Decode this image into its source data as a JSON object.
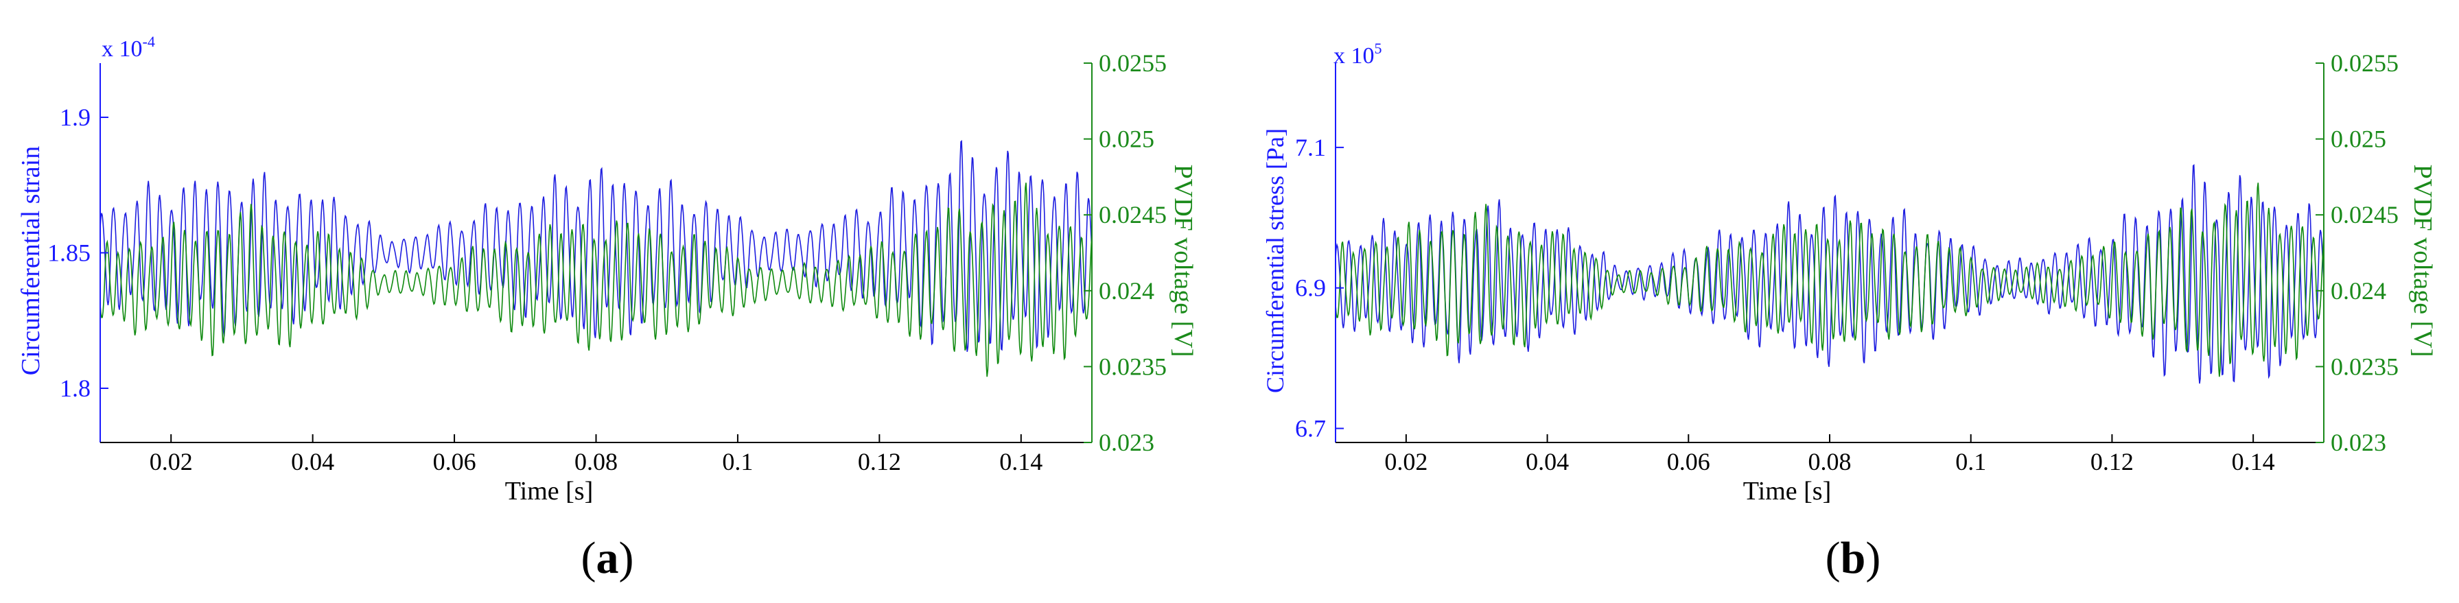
{
  "figure": {
    "panels": [
      {
        "panel_label": "a",
        "panel_label_text": "(a)"
      },
      {
        "panel_label": "b",
        "panel_label_text": "(b)"
      }
    ]
  },
  "colors": {
    "left_axis": "#1a1aff",
    "right_axis": "#1a8a1a",
    "axes": "#000000",
    "strain_line": "#1e1ee0",
    "voltage_line": "#0f8a0f"
  },
  "chart_data": [
    {
      "type": "line",
      "title": "",
      "panel": "(a)",
      "xlabel": "Time [s]",
      "xlim": [
        0.01,
        0.15
      ],
      "xticks": [
        0.02,
        0.04,
        0.06,
        0.08,
        0.1,
        0.12,
        0.14
      ],
      "xtick_labels": [
        "0.02",
        "0.04",
        "0.06",
        "0.08",
        "0.1",
        "0.12",
        "0.14"
      ],
      "y_left": {
        "label": "Circumferential strain",
        "exponent_label": "x 10",
        "exponent": "-4",
        "lim": [
          1.78,
          1.92
        ],
        "ticks": [
          1.8,
          1.85,
          1.9
        ],
        "tick_labels": [
          "1.8",
          "1.85",
          "1.9"
        ],
        "color": "#1a1aff"
      },
      "y_right": {
        "label": "PVDF voltage [V]",
        "lim": [
          0.023,
          0.0255
        ],
        "ticks": [
          0.023,
          0.0235,
          0.024,
          0.0245,
          0.025,
          0.0255
        ],
        "tick_labels": [
          "0.023",
          "0.0235",
          "0.024",
          "0.0245",
          "0.025",
          "0.0255"
        ],
        "color": "#1a8a1a"
      },
      "series": [
        {
          "axis": "left",
          "color": "#1e1ee0",
          "signal": {
            "mean": 1.85,
            "freq_hz": 610,
            "amplitude_envelope": {
              "t": [
                0.01,
                0.02,
                0.03,
                0.045,
                0.05,
                0.055,
                0.065,
                0.08,
                0.095,
                0.105,
                0.115,
                0.125,
                0.132,
                0.14,
                0.15
              ],
              "v": [
                0.02,
                0.03,
                0.033,
                0.022,
                0.006,
                0.008,
                0.02,
                0.036,
                0.024,
                0.008,
                0.016,
                0.03,
                0.045,
                0.04,
                0.028
              ]
            }
          }
        },
        {
          "axis": "right",
          "color": "#0f8a0f",
          "signal": {
            "mean": 0.02405,
            "freq_hz": 640,
            "amplitude_envelope": {
              "t": [
                0.01,
                0.02,
                0.03,
                0.045,
                0.05,
                0.055,
                0.065,
                0.08,
                0.095,
                0.105,
                0.115,
                0.125,
                0.132,
                0.14,
                0.15
              ],
              "v": [
                0.0003,
                0.0004,
                0.00055,
                0.0003,
                8e-05,
                0.0001,
                0.0003,
                0.0005,
                0.00035,
                0.0001,
                0.0002,
                0.0004,
                0.0006,
                0.0007,
                0.0004
              ]
            }
          }
        }
      ]
    },
    {
      "type": "line",
      "title": "",
      "panel": "(b)",
      "xlabel": "Time [s]",
      "xlim": [
        0.01,
        0.15
      ],
      "xticks": [
        0.02,
        0.04,
        0.06,
        0.08,
        0.1,
        0.12,
        0.14
      ],
      "xtick_labels": [
        "0.02",
        "0.04",
        "0.06",
        "0.08",
        "0.1",
        "0.12",
        "0.14"
      ],
      "y_left": {
        "label": "Circumferential stress [Pa]",
        "exponent_label": "x 10",
        "exponent": "5",
        "lim": [
          6.68,
          7.22
        ],
        "ticks": [
          6.7,
          6.9,
          7.1
        ],
        "tick_labels": [
          "6.7",
          "6.9",
          "7.1"
        ],
        "color": "#1a1aff"
      },
      "y_right": {
        "label": "PVDF voltage [V]",
        "lim": [
          0.023,
          0.0255
        ],
        "ticks": [
          0.023,
          0.0235,
          0.024,
          0.0245,
          0.025,
          0.0255
        ],
        "tick_labels": [
          "0.023",
          "0.0235",
          "0.024",
          "0.0245",
          "0.025",
          "0.0255"
        ],
        "color": "#1a8a1a"
      },
      "series": [
        {
          "axis": "left",
          "color": "#1e1ee0",
          "signal": {
            "mean": 6.91,
            "freq_hz": 610,
            "amplitude_envelope": {
              "t": [
                0.01,
                0.02,
                0.03,
                0.045,
                0.05,
                0.055,
                0.065,
                0.08,
                0.095,
                0.105,
                0.115,
                0.125,
                0.132,
                0.14,
                0.15
              ],
              "v": [
                0.07,
                0.1,
                0.13,
                0.08,
                0.02,
                0.03,
                0.08,
                0.14,
                0.09,
                0.03,
                0.06,
                0.12,
                0.18,
                0.16,
                0.1
              ]
            }
          }
        },
        {
          "axis": "right",
          "color": "#0f8a0f",
          "signal": {
            "mean": 0.02405,
            "freq_hz": 640,
            "amplitude_envelope": {
              "t": [
                0.01,
                0.02,
                0.03,
                0.045,
                0.05,
                0.055,
                0.065,
                0.08,
                0.095,
                0.105,
                0.115,
                0.125,
                0.132,
                0.14,
                0.15
              ],
              "v": [
                0.0003,
                0.0004,
                0.00055,
                0.0003,
                8e-05,
                0.0001,
                0.0003,
                0.0005,
                0.00035,
                0.0001,
                0.0002,
                0.0004,
                0.0006,
                0.0007,
                0.0004
              ]
            }
          }
        }
      ]
    }
  ]
}
